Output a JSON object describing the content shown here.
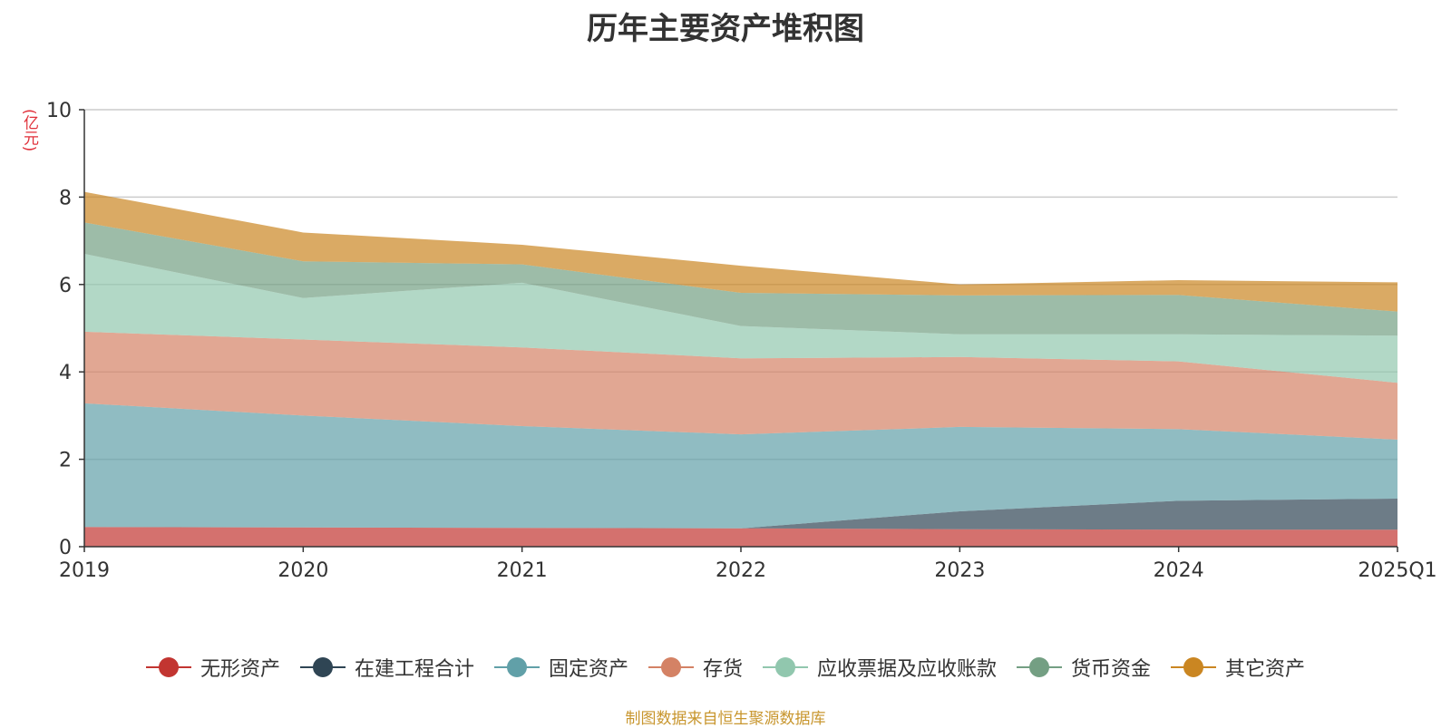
{
  "title": "历年主要资产堆积图",
  "unit_label": "(亿元)",
  "source_note": "制图数据来自恒生聚源数据库",
  "chart_data": {
    "type": "area",
    "stacked": true,
    "categories": [
      "2019",
      "2020",
      "2021",
      "2022",
      "2023",
      "2024",
      "2025Q1"
    ],
    "ylim": [
      0,
      10
    ],
    "yticks": [
      0,
      2,
      4,
      6,
      8,
      10
    ],
    "grid": true,
    "legend_position": "bottom",
    "series": [
      {
        "name": "无形资产",
        "color": "#c23531",
        "values": [
          0.45,
          0.44,
          0.43,
          0.42,
          0.4,
          0.39,
          0.39
        ]
      },
      {
        "name": "在建工程合计",
        "color": "#2f4554",
        "values": [
          0.0,
          0.0,
          0.0,
          0.0,
          0.41,
          0.66,
          0.71
        ]
      },
      {
        "name": "固定资产",
        "color": "#61a0a8",
        "values": [
          2.83,
          2.56,
          2.33,
          2.15,
          1.93,
          1.64,
          1.35
        ]
      },
      {
        "name": "存货",
        "color": "#d48265",
        "values": [
          1.64,
          1.74,
          1.8,
          1.74,
          1.6,
          1.55,
          1.3
        ]
      },
      {
        "name": "应收票据及应收账款",
        "color": "#91c7ae",
        "values": [
          1.78,
          0.95,
          1.48,
          0.74,
          0.52,
          0.62,
          1.08
        ]
      },
      {
        "name": "货币资金",
        "color": "#749f83",
        "values": [
          0.72,
          0.84,
          0.42,
          0.76,
          0.89,
          0.9,
          0.55
        ]
      },
      {
        "name": "其它资产",
        "color": "#ca8622",
        "values": [
          0.7,
          0.66,
          0.45,
          0.62,
          0.25,
          0.34,
          0.67
        ]
      }
    ]
  }
}
